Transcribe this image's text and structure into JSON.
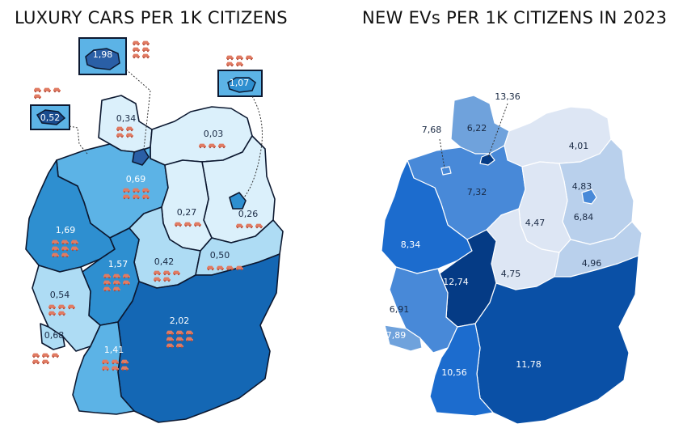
{
  "left_map": {
    "title": "LUXURY CARS PER 1K CITIZENS",
    "regions": {
      "schleswig_holstein": "0,34",
      "hamburg": "1,98",
      "mecklenburg": "0,03",
      "bremen": "0,52",
      "lower_saxony": "0,69",
      "berlin": "1,07",
      "brandenburg": "0,26",
      "saxony_anhalt": "0,27",
      "nrw": "1,69",
      "thuringia": "0,42",
      "saxony": "0,50",
      "hesse": "1,57",
      "rhineland_palatinate": "0,54",
      "saarland": "0,68",
      "bavaria": "2,02",
      "baden_wuerttemberg": "1,41"
    },
    "colors": {
      "very_light": "#dbf0fb",
      "light": "#aedcf4",
      "medium": "#5cb3e6",
      "strong": "#2e8fd0",
      "dark": "#1467b4"
    },
    "icon": "car-icon"
  },
  "right_map": {
    "title": "NEW EVs PER 1K CITIZENS IN 2023",
    "regions": {
      "schleswig_holstein": "6,22",
      "hamburg": "13,36",
      "bremen": "7,68",
      "mecklenburg": "4,01",
      "lower_saxony": "7,32",
      "brandenburg": "4,83",
      "berlin": "6,84",
      "saxony_anhalt": "4,47",
      "nrw": "8,34",
      "thuringia": "4,75",
      "saxony": "4,96",
      "hesse": "12,74",
      "rhineland_palatinate": "6,91",
      "saarland": "7,89",
      "baden_wuerttemberg": "10,56",
      "bavaria": "11,78"
    },
    "colors": {
      "lightest": "#dde6f4",
      "light": "#b9d0ec",
      "mid": "#6fa2dc",
      "mid_strong": "#4889d8",
      "strong": "#1c6cce",
      "dark": "#0a50a6",
      "darkest": "#053b85"
    }
  }
}
